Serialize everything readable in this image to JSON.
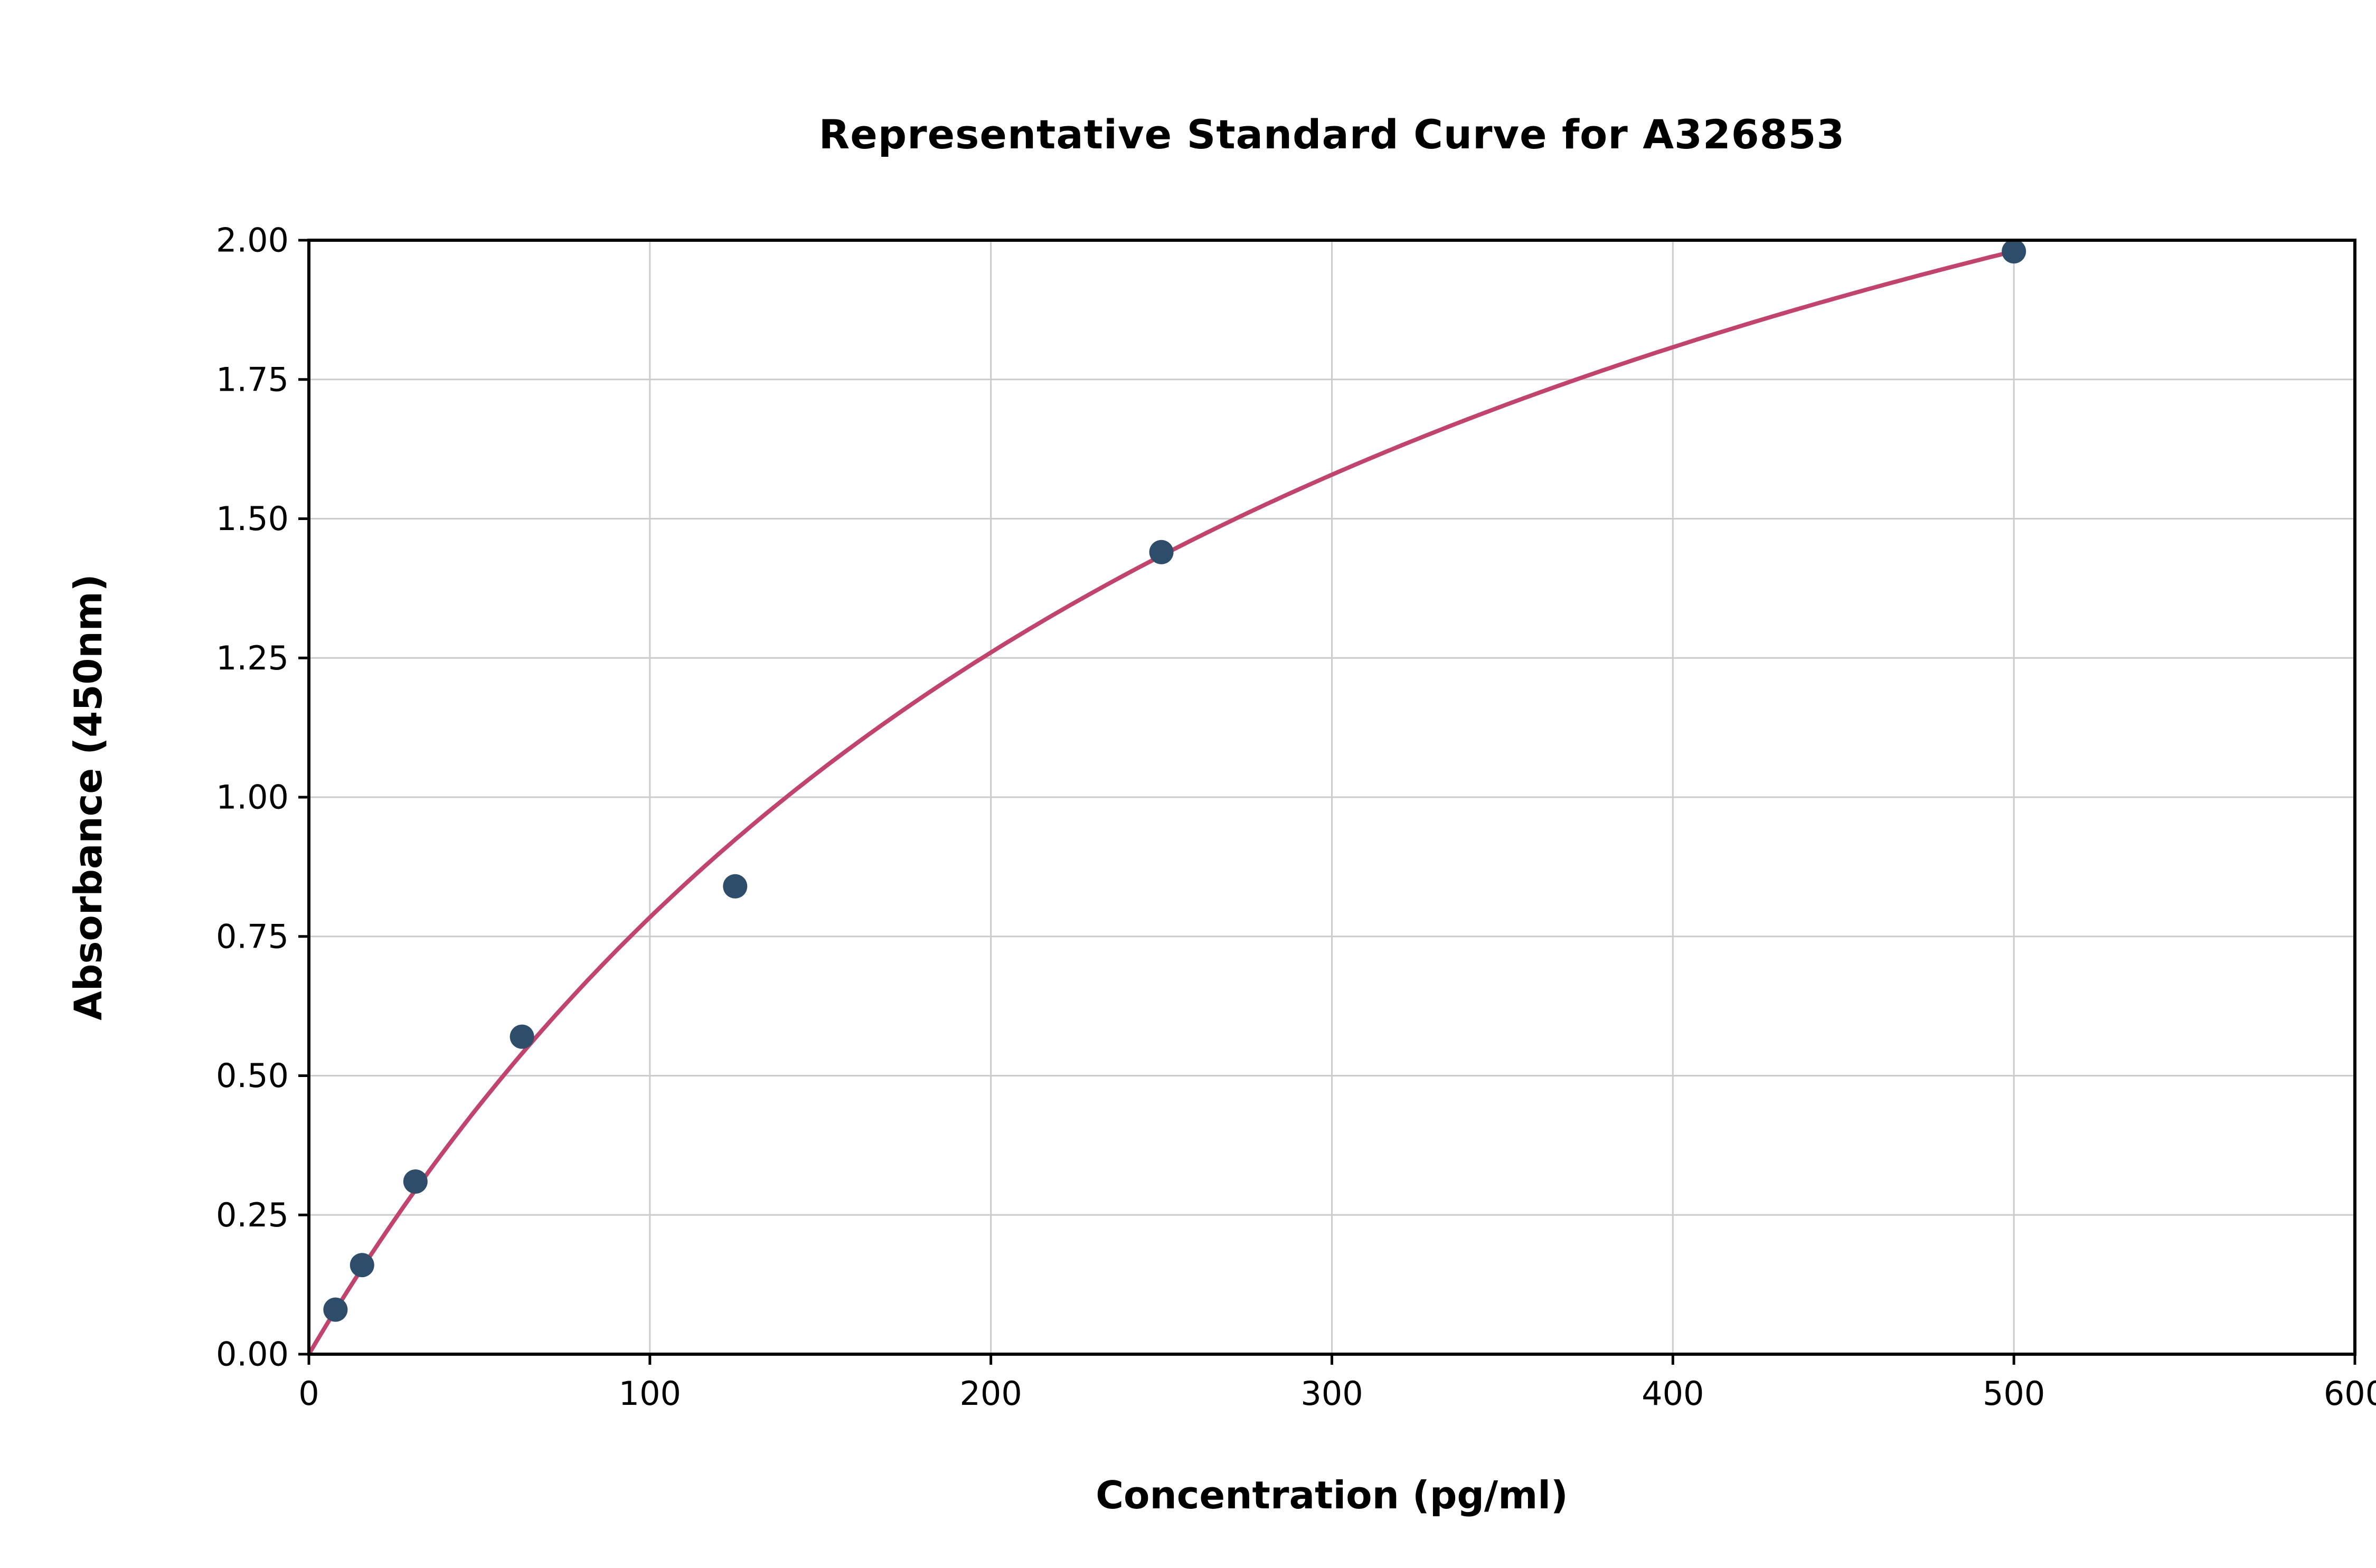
{
  "chart_data": {
    "type": "scatter",
    "title": "Representative Standard Curve for A326853",
    "xlabel": "Concentration (pg/ml)",
    "ylabel": "Absorbance (450nm)",
    "xlim": [
      0,
      600
    ],
    "ylim": [
      0,
      2.0
    ],
    "x_ticks": [
      0,
      100,
      200,
      300,
      400,
      500,
      600
    ],
    "x_tick_labels": [
      "0",
      "100",
      "200",
      "300",
      "400",
      "500",
      "600"
    ],
    "y_ticks": [
      0,
      0.25,
      0.5,
      0.75,
      1.0,
      1.25,
      1.5,
      1.75,
      2.0
    ],
    "y_tick_labels": [
      "0.00",
      "0.25",
      "0.50",
      "0.75",
      "1.00",
      "1.25",
      "1.50",
      "1.75",
      "2.00"
    ],
    "grid": true,
    "legend_position": "none",
    "points": [
      {
        "x": 7.8,
        "y": 0.08
      },
      {
        "x": 15.6,
        "y": 0.16
      },
      {
        "x": 31.25,
        "y": 0.31
      },
      {
        "x": 62.5,
        "y": 0.57
      },
      {
        "x": 125,
        "y": 0.84
      },
      {
        "x": 250,
        "y": 1.44
      },
      {
        "x": 500,
        "y": 1.98
      }
    ],
    "fit_curve": {
      "model": "y = a*x / (b + x)",
      "a": 3.2,
      "b": 308,
      "x_start": 0,
      "x_end": 500
    },
    "colors": {
      "curve": "#c0446c",
      "points": "#2e4d6b",
      "grid": "#cccccc",
      "spine": "#000000",
      "text": "#000000"
    }
  }
}
